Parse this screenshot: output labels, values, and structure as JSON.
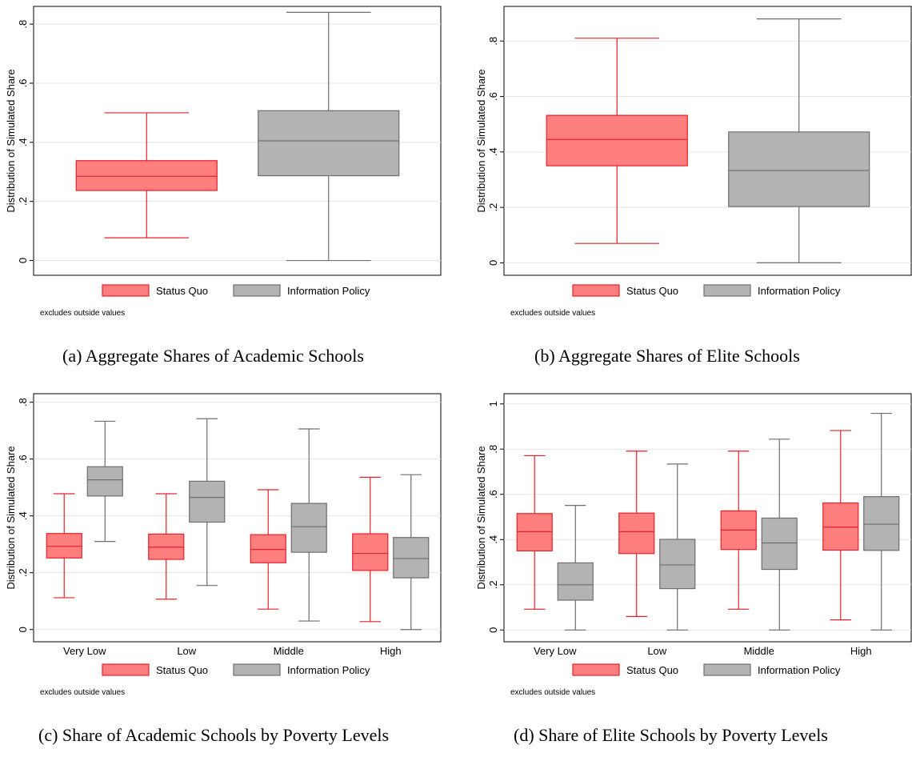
{
  "colors": {
    "status_quo_fill": "#ff7f7f",
    "status_quo_line": "#e8202a",
    "info_fill": "#b3b3b3",
    "info_line": "#6e6e6e",
    "grid": "#e3e3e3"
  },
  "chart_data": [
    {
      "type": "box",
      "caption": "(a)  Aggregate Shares of Academic Schools",
      "ylabel": "Distribution of Simulated Share",
      "ylim": [
        -0.05,
        0.86
      ],
      "yticks": [
        0,
        0.2,
        0.4,
        0.6,
        0.8
      ],
      "ytick_labels": [
        "0",
        ".2",
        ".4",
        ".6",
        ".8"
      ],
      "grid": true,
      "legend_position": "bottom",
      "note": "excludes outside values",
      "categories": [],
      "series": [
        {
          "name": "Status Quo",
          "boxes": [
            {
              "min": 0.077,
              "q1": 0.237,
              "median": 0.285,
              "q3": 0.338,
              "max": 0.5
            }
          ]
        },
        {
          "name": "Information Policy",
          "boxes": [
            {
              "min": 0.0,
              "q1": 0.287,
              "median": 0.405,
              "q3": 0.507,
              "max": 0.84
            }
          ]
        }
      ]
    },
    {
      "type": "box",
      "caption": "(b)  Aggregate Shares of Elite Schools",
      "ylabel": "Distribution of Simulated Share",
      "ylim": [
        -0.045,
        0.925
      ],
      "yticks": [
        0,
        0.2,
        0.4,
        0.6,
        0.8
      ],
      "ytick_labels": [
        "0",
        ".2",
        ".4",
        ".6",
        ".8"
      ],
      "grid": true,
      "legend_position": "bottom",
      "note": "excludes outside values",
      "categories": [],
      "series": [
        {
          "name": "Status Quo",
          "boxes": [
            {
              "min": 0.07,
              "q1": 0.35,
              "median": 0.445,
              "q3": 0.532,
              "max": 0.81
            }
          ]
        },
        {
          "name": "Information Policy",
          "boxes": [
            {
              "min": 0.0,
              "q1": 0.203,
              "median": 0.333,
              "q3": 0.472,
              "max": 0.88
            }
          ]
        }
      ]
    },
    {
      "type": "box",
      "caption": "(c)  Share of Academic Schools by Poverty Levels",
      "ylabel": "Distribution of Simulated Share",
      "ylim": [
        -0.043,
        0.83
      ],
      "yticks": [
        0,
        0.2,
        0.4,
        0.6,
        0.8
      ],
      "ytick_labels": [
        "0",
        ".2",
        ".4",
        ".6",
        ".8"
      ],
      "grid": true,
      "legend_position": "bottom",
      "note": "excludes outside values",
      "categories": [
        "Very Low",
        "Low",
        "Middle",
        "High"
      ],
      "series": [
        {
          "name": "Status Quo",
          "boxes": [
            {
              "min": 0.112,
              "q1": 0.252,
              "median": 0.293,
              "q3": 0.338,
              "max": 0.478
            },
            {
              "min": 0.107,
              "q1": 0.247,
              "median": 0.29,
              "q3": 0.336,
              "max": 0.478
            },
            {
              "min": 0.072,
              "q1": 0.235,
              "median": 0.282,
              "q3": 0.334,
              "max": 0.492
            },
            {
              "min": 0.028,
              "q1": 0.208,
              "median": 0.268,
              "q3": 0.337,
              "max": 0.536
            }
          ]
        },
        {
          "name": "Information Policy",
          "boxes": [
            {
              "min": 0.31,
              "q1": 0.47,
              "median": 0.527,
              "q3": 0.573,
              "max": 0.733
            },
            {
              "min": 0.155,
              "q1": 0.378,
              "median": 0.465,
              "q3": 0.522,
              "max": 0.742
            },
            {
              "min": 0.03,
              "q1": 0.272,
              "median": 0.362,
              "q3": 0.444,
              "max": 0.706
            },
            {
              "min": 0.0,
              "q1": 0.182,
              "median": 0.25,
              "q3": 0.324,
              "max": 0.545
            }
          ]
        }
      ]
    },
    {
      "type": "box",
      "caption": "(d)  Share of Elite Schools by Poverty Levels",
      "ylabel": "Distribution of Simulated Share",
      "ylim": [
        -0.052,
        1.045
      ],
      "yticks": [
        0,
        0.2,
        0.4,
        0.6,
        0.8,
        1
      ],
      "ytick_labels": [
        "0",
        ".2",
        ".4",
        ".6",
        ".8",
        "1"
      ],
      "grid": true,
      "legend_position": "bottom",
      "note": "excludes outside values",
      "categories": [
        "Very Low",
        "Low",
        "Middle",
        "High"
      ],
      "series": [
        {
          "name": "Status Quo",
          "boxes": [
            {
              "min": 0.092,
              "q1": 0.35,
              "median": 0.435,
              "q3": 0.515,
              "max": 0.771
            },
            {
              "min": 0.06,
              "q1": 0.338,
              "median": 0.435,
              "q3": 0.517,
              "max": 0.791
            },
            {
              "min": 0.092,
              "q1": 0.356,
              "median": 0.442,
              "q3": 0.527,
              "max": 0.791
            },
            {
              "min": 0.045,
              "q1": 0.353,
              "median": 0.455,
              "q3": 0.562,
              "max": 0.882
            }
          ]
        },
        {
          "name": "Information Policy",
          "boxes": [
            {
              "min": 0.0,
              "q1": 0.132,
              "median": 0.2,
              "q3": 0.297,
              "max": 0.551
            },
            {
              "min": 0.0,
              "q1": 0.183,
              "median": 0.288,
              "q3": 0.401,
              "max": 0.734
            },
            {
              "min": 0.0,
              "q1": 0.268,
              "median": 0.385,
              "q3": 0.495,
              "max": 0.844
            },
            {
              "min": 0.0,
              "q1": 0.352,
              "median": 0.468,
              "q3": 0.59,
              "max": 0.958
            }
          ]
        }
      ]
    }
  ]
}
